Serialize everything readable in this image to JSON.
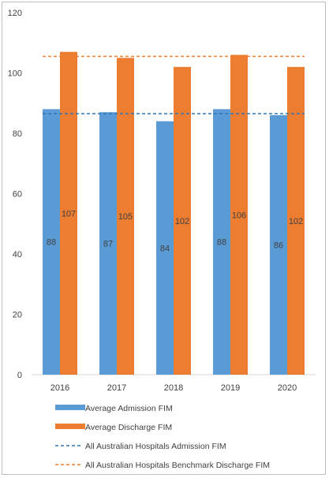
{
  "chart_data": {
    "type": "bar",
    "categories": [
      "2016",
      "2017",
      "2018",
      "2019",
      "2020"
    ],
    "series": [
      {
        "name": "Average Admission FIM",
        "type": "bar",
        "color": "#5b9bd5",
        "values": [
          88,
          87,
          84,
          88,
          86
        ]
      },
      {
        "name": "Average Discharge FIM",
        "type": "bar",
        "color": "#ed7d31",
        "values": [
          107,
          105,
          102,
          106,
          102
        ]
      },
      {
        "name": "All Australian Hospitals Admission FIM",
        "type": "dashed-line",
        "color": "#2e75b6",
        "value": 86.5
      },
      {
        "name": "All Australian Hospitals Benchmark Discharge FIM",
        "type": "dashed-line",
        "color": "#ed7d31",
        "value": 105.5
      }
    ],
    "ylim": [
      0,
      120
    ],
    "yticks": [
      0,
      20,
      40,
      60,
      80,
      100,
      120
    ],
    "grid": false,
    "legend": "bottom",
    "title": "",
    "xlabel": "",
    "ylabel": ""
  }
}
